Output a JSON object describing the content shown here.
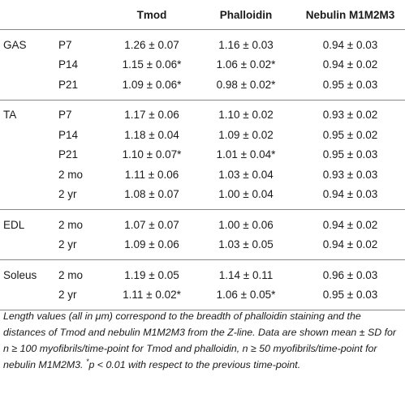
{
  "header": {
    "col_muscle": "",
    "col_time": "",
    "col_tmod": "Tmod",
    "col_phalloidin": "Phalloidin",
    "col_nebulin": "Nebulin M1M2M3"
  },
  "rows": [
    {
      "muscle": "GAS",
      "time": "P7",
      "tmod": "1.26 ± 0.07",
      "phalloidin": "1.16 ± 0.03",
      "nebulin": "0.94 ± 0.03"
    },
    {
      "muscle": "",
      "time": "P14",
      "tmod": "1.15 ± 0.06*",
      "phalloidin": "1.06 ± 0.02*",
      "nebulin": "0.94 ± 0.02"
    },
    {
      "muscle": "",
      "time": "P21",
      "tmod": "1.09 ± 0.06*",
      "phalloidin": "0.98 ± 0.02*",
      "nebulin": "0.95 ± 0.03"
    },
    {
      "muscle": "TA",
      "time": "P7",
      "tmod": "1.17 ± 0.06",
      "phalloidin": "1.10 ± 0.02",
      "nebulin": "0.93 ± 0.02"
    },
    {
      "muscle": "",
      "time": "P14",
      "tmod": "1.18 ± 0.04",
      "phalloidin": "1.09 ± 0.02",
      "nebulin": "0.95 ± 0.02"
    },
    {
      "muscle": "",
      "time": "P21",
      "tmod": "1.10 ± 0.07*",
      "phalloidin": "1.01 ± 0.04*",
      "nebulin": "0.95 ± 0.03"
    },
    {
      "muscle": "",
      "time": "2 mo",
      "tmod": "1.11 ± 0.06",
      "phalloidin": "1.03 ± 0.04",
      "nebulin": "0.93 ± 0.03"
    },
    {
      "muscle": "",
      "time": "2 yr",
      "tmod": "1.08 ± 0.07",
      "phalloidin": "1.00 ± 0.04",
      "nebulin": "0.94 ± 0.03"
    },
    {
      "muscle": "EDL",
      "time": "2 mo",
      "tmod": "1.07 ± 0.07",
      "phalloidin": "1.00 ± 0.06",
      "nebulin": "0.94 ± 0.02"
    },
    {
      "muscle": "",
      "time": "2 yr",
      "tmod": "1.09 ± 0.06",
      "phalloidin": "1.03 ± 0.05",
      "nebulin": "0.94 ± 0.02"
    },
    {
      "muscle": "Soleus",
      "time": "2 mo",
      "tmod": "1.19 ± 0.05",
      "phalloidin": "1.14 ± 0.11",
      "nebulin": "0.96 ± 0.03"
    },
    {
      "muscle": "",
      "time": "2 yr",
      "tmod": "1.11 ± 0.02*",
      "phalloidin": "1.06 ± 0.05*",
      "nebulin": "0.95 ± 0.03"
    }
  ],
  "footnote": {
    "part1": "Length values (all in μm) correspond to the breadth of phalloidin staining and the distances of Tmod and nebulin M1M2M3 from the Z-line. Data are shown mean ± SD for n ≥ 100 myofibrils/time-point for Tmod and phalloidin, n ≥ 50 myofibrils/time-point for nebulin M1M2M3. ",
    "star": "*",
    "part2": "p < 0.01 with respect to the previous time-point."
  }
}
